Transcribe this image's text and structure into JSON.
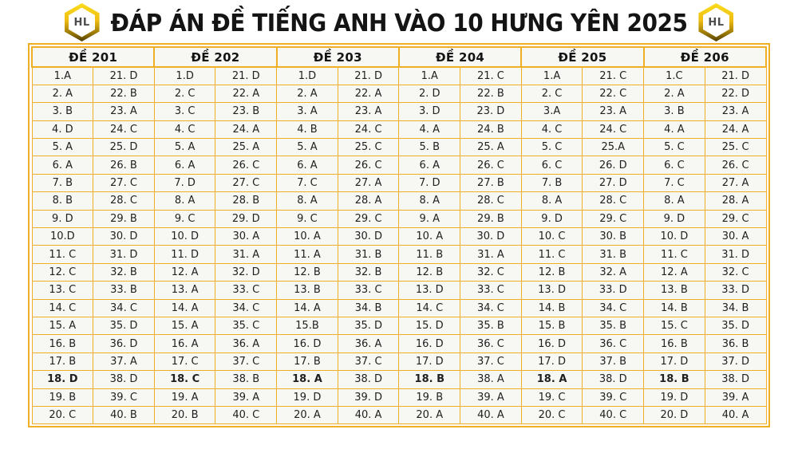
{
  "title": "ĐÁP ÁN ĐỀ TIẾNG ANH VÀO 10 HƯNG YÊN 2025",
  "logo": {
    "text": "HL"
  },
  "colors": {
    "border_gold": "#EFAF24",
    "cell_bg": "#F7F7F4",
    "cell_text": "#1F1F1F",
    "title_text": "#141414",
    "badge_gold_light": "#F9DD1E",
    "badge_gold_dark": "#4F3E02"
  },
  "table": {
    "bold_row_number": 18,
    "columns": [
      {
        "header": "ĐỀ 201",
        "left": [
          "1.A",
          "2. A",
          "3. B",
          "4. D",
          "5. A",
          "6. A",
          "7. B",
          "8. B",
          "9. D",
          "10.D",
          "11. C",
          "12. C",
          "13. C",
          "14. C",
          "15. A",
          "16. B",
          "17. B",
          "18. D",
          "19. B",
          "20. C"
        ],
        "right": [
          "21. D",
          "22. B",
          "23. A",
          "24. C",
          "25. D",
          "26. B",
          "27. C",
          "28. C",
          "29. B",
          "30. D",
          "31. D",
          "32. B",
          "33. B",
          "34. C",
          "35. D",
          "36. D",
          "37. A",
          "38. D",
          "39. C",
          "40. B"
        ]
      },
      {
        "header": "ĐỀ 202",
        "left": [
          "1.D",
          "2. C",
          "3. C",
          "4. C",
          "5. A",
          "6. A",
          "7. D",
          "8. A",
          "9. C",
          "10. D",
          "11. D",
          "12. A",
          "13. A",
          "14. A",
          "15. A",
          "16. A",
          "17. C",
          "18. C",
          "19. A",
          "20. B"
        ],
        "right": [
          "21. D",
          "22. A",
          "23. B",
          "24. A",
          "25. A",
          "26. C",
          "27. C",
          "28. B",
          "29. D",
          "30. A",
          "31. A",
          "32. D",
          "33. C",
          "34. C",
          "35. C",
          "36. A",
          "37. C",
          "38. B",
          "39. A",
          "40. C"
        ]
      },
      {
        "header": "ĐỀ 203",
        "left": [
          "1.D",
          "2. A",
          "3. A",
          "4. B",
          "5. A",
          "6. A",
          "7. C",
          "8. A",
          "9. C",
          "10. A",
          "11. A",
          "12. B",
          "13. B",
          "14. A",
          "15.B",
          "16. D",
          "17. B",
          "18. A",
          "19. D",
          "20. A"
        ],
        "right": [
          "21. D",
          "22. A",
          "23. A",
          "24. C",
          "25. C",
          "26. C",
          "27. A",
          "28. A",
          "29. C",
          "30. D",
          "31. B",
          "32. B",
          "33. C",
          "34. B",
          "35. D",
          "36. A",
          "37. C",
          "38. D",
          "39. D",
          "40. A"
        ]
      },
      {
        "header": "ĐỀ 204",
        "left": [
          "1.A",
          "2. D",
          "3. D",
          "4. A",
          "5. B",
          "6. A",
          "7. D",
          "8. A",
          "9. A",
          "10. A",
          "11. B",
          "12. B",
          "13. D",
          "14. C",
          "15. D",
          "16. D",
          "17. D",
          "18. B",
          "19. B",
          "20. A"
        ],
        "right": [
          "21. C",
          "22. B",
          "23. D",
          "24. B",
          "25. A",
          "26. C",
          "27. B",
          "28. C",
          "29. B",
          "30. D",
          "31. A",
          "32. C",
          "33. C",
          "34. C",
          "35. B",
          "36. C",
          "37. C",
          "38. A",
          "39. A",
          "40. A"
        ]
      },
      {
        "header": "ĐỀ 205",
        "left": [
          "1.A",
          "2. C",
          "3.A",
          "4. C",
          "5. C",
          "6. C",
          "7. B",
          "8. A",
          "9. D",
          "10. C",
          "11. C",
          "12. B",
          "13. D",
          "14. B",
          "15. B",
          "16. D",
          "17. D",
          "18. A",
          "19. C",
          "20. C"
        ],
        "right": [
          "21. C",
          "22. C",
          "23. A",
          "24. C",
          "25.A",
          "26. D",
          "27. D",
          "28. C",
          "29. C",
          "30. B",
          "31. B",
          "32. A",
          "33. D",
          "34. C",
          "35. B",
          "36. C",
          "37. B",
          "38. D",
          "39. C",
          "40. C"
        ]
      },
      {
        "header": "ĐỀ 206",
        "left": [
          "1.C",
          "2. A",
          "3. B",
          "4. A",
          "5. C",
          "6. C",
          "7. C",
          "8. A",
          "9. D",
          "10. D",
          "11. C",
          "12. A",
          "13. B",
          "14. B",
          "15. C",
          "16. B",
          "17. D",
          "18. B",
          "19. D",
          "20. D"
        ],
        "right": [
          "21. D",
          "22. D",
          "23. A",
          "24. A",
          "25. C",
          "26. C",
          "27. A",
          "28. A",
          "29. C",
          "30. A",
          "31. D",
          "32. C",
          "33. D",
          "34. B",
          "35. D",
          "36. B",
          "37. D",
          "38. D",
          "39. A",
          "40. A"
        ]
      }
    ]
  }
}
